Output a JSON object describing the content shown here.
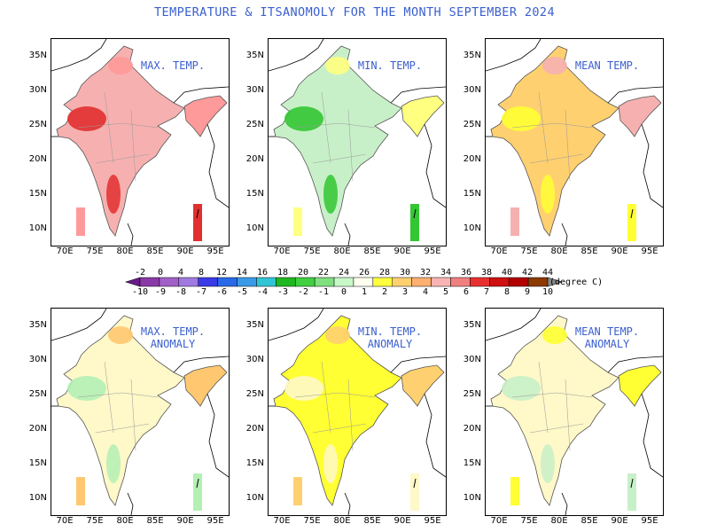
{
  "title": "TEMPERATURE & ITSANOMOLY FOR THE MONTH SEPTEMBER 2024",
  "panels": [
    {
      "label": "MAX. TEMP.",
      "fill": "#f6b0b0",
      "accent": "#e23030",
      "hot": "#ff9a9a"
    },
    {
      "label": "MIN. TEMP.",
      "fill": "#c8f0c8",
      "accent": "#33c733",
      "hot": "#ffff80"
    },
    {
      "label": "MEAN TEMP.",
      "fill": "#ffd070",
      "accent": "#ffff33",
      "hot": "#f6b0b0"
    },
    {
      "label": "MAX. TEMP.\nANOMALY",
      "fill": "#fff8c8",
      "accent": "#b4f0b4",
      "hot": "#ffc870"
    },
    {
      "label": "MIN. TEMP.\nANOMALY",
      "fill": "#ffff33",
      "accent": "#fff8c8",
      "hot": "#ffd070"
    },
    {
      "label": "MEAN TEMP.\nANOMALY",
      "fill": "#fff8c8",
      "accent": "#c8f0c8",
      "hot": "#ffff33"
    }
  ],
  "y_ticks": [
    "35N",
    "30N",
    "25N",
    "20N",
    "15N",
    "10N"
  ],
  "x_ticks": [
    "70E",
    "75E",
    "80E",
    "85E",
    "90E",
    "95E"
  ],
  "colorbar": {
    "top_labels": [
      "-2",
      "0",
      "4",
      "8",
      "12",
      "14",
      "16",
      "18",
      "20",
      "22",
      "24",
      "26",
      "28",
      "30",
      "32",
      "34",
      "36",
      "38",
      "40",
      "42",
      "44"
    ],
    "bottom_labels": [
      "-10",
      "-9",
      "-8",
      "-7",
      "-6",
      "-5",
      "-4",
      "-3",
      "-2",
      "-1",
      "0",
      "1",
      "2",
      "3",
      "4",
      "5",
      "6",
      "7",
      "8",
      "9",
      "10"
    ],
    "colors": [
      "#6a1a8a",
      "#8a3aa8",
      "#a060c8",
      "#a07ae0",
      "#3a3ae8",
      "#2a6ae8",
      "#3a9ae8",
      "#30c4d4",
      "#20b820",
      "#40d040",
      "#80e080",
      "#c8f8c8",
      "#fffff0",
      "#ffff40",
      "#ffd070",
      "#ffb070",
      "#f8b4b4",
      "#f08080",
      "#e83030",
      "#d01010",
      "#b00000",
      "#8c3a00",
      "#5a1000"
    ],
    "unit": "(degree C)"
  }
}
